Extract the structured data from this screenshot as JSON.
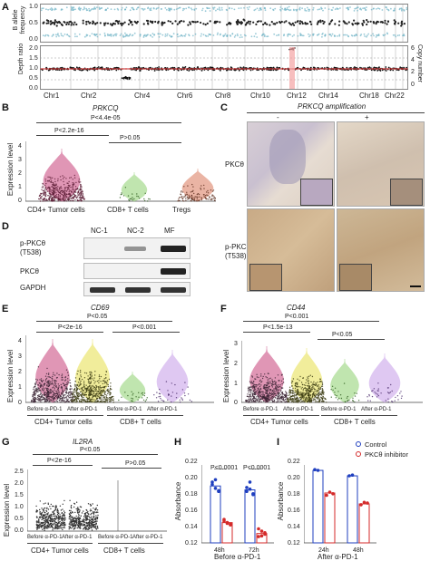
{
  "panels": {
    "a": "A",
    "b": "B",
    "c": "C",
    "d": "D",
    "e": "E",
    "f": "F",
    "g": "G",
    "h": "H",
    "i": "I"
  },
  "panel_a": {
    "y_label_top": "B allele\nfrequency",
    "y_label_bottom": "Depth ratio",
    "y_label_right": "Copy number",
    "top_ticks": [
      "1.0",
      "0.5",
      "0.0"
    ],
    "bottom_ticks": [
      "2.0",
      "1.5",
      "1.0",
      "0.5",
      "0.0"
    ],
    "right_ticks": [
      "6",
      "4",
      "2",
      "0"
    ],
    "chromosomes": [
      "Chr1",
      "Chr2",
      "Chr4",
      "Chr6",
      "Chr8",
      "Chr10",
      "Chr12",
      "Chr14",
      "Chr18",
      "Chr22"
    ]
  },
  "panel_b": {
    "title": "PRKCQ",
    "ylabel": "Expression level",
    "yticks": [
      "4",
      "3",
      "2",
      "1",
      "0"
    ],
    "groups": [
      "CD4+ Tumor cells",
      "CD8+ T cells",
      "Tregs"
    ],
    "group_colors": [
      "#c8417a",
      "#8ed06e",
      "#d9785a"
    ],
    "p_values": [
      "P<4.4e-05",
      "P<2.2e-16",
      "P>0.05"
    ]
  },
  "panel_c": {
    "title": "PRKCQ amplification",
    "col_labels": [
      "-",
      "+"
    ],
    "row_labels": [
      "PKCθ",
      "p-PKCθ\n(T538)"
    ]
  },
  "panel_d": {
    "col_labels": [
      "NC-1",
      "NC-2",
      "MF"
    ],
    "row_labels": [
      "p-PKCθ\n(T538)",
      "PKCθ",
      "GAPDH"
    ]
  },
  "panel_e": {
    "title": "CD69",
    "ylabel": "Expression level",
    "yticks": [
      "4",
      "3",
      "2",
      "1",
      "0"
    ],
    "subgroups": [
      "Before α-PD-1",
      "After α-PD-1",
      "Before α-PD-1",
      "After α-PD-1"
    ],
    "groups": [
      "CD4+ Tumor cells",
      "CD8+ T cells"
    ],
    "p_values": [
      "P<0.05",
      "P<2e-16",
      "P<0.001"
    ]
  },
  "panel_f": {
    "title": "CD44",
    "ylabel": "Expression level",
    "yticks": [
      "3",
      "2",
      "1",
      "0"
    ],
    "subgroups": [
      "Before α-PD-1",
      "After α-PD-1",
      "Before α-PD-1",
      "After α-PD-1"
    ],
    "groups": [
      "CD4+ Tumor cells",
      "CD8+ T cells"
    ],
    "p_values": [
      "P<0.001",
      "P<1.5e-13",
      "P<0.05"
    ]
  },
  "panel_g": {
    "title": "IL2RA",
    "ylabel": "Expression level",
    "yticks": [
      "2.5",
      "2.0",
      "1.5",
      "1.0",
      "0.5",
      "0.0"
    ],
    "subgroups": [
      "Before α-PD-1",
      "After α-PD-1",
      "Before α-PD-1",
      "After α-PD-1"
    ],
    "groups": [
      "CD4+ Tumor cells",
      "CD8+ T cells"
    ],
    "p_values": [
      "P<0.05",
      "P<2e-16",
      "P>0.05"
    ]
  },
  "panel_h": {
    "ylabel": "Absorbance",
    "yticks": [
      "0.22",
      "0.20",
      "0.18",
      "0.16",
      "0.14",
      "0.12"
    ],
    "xticks": [
      "48h",
      "72h"
    ],
    "xlabel": "Before α-PD-1",
    "p_values": [
      "P<0.0001",
      "P<0.0001"
    ]
  },
  "panel_i": {
    "ylabel": "Absorbance",
    "yticks": [
      "0.22",
      "0.20",
      "0.18",
      "0.16",
      "0.14",
      "0.12"
    ],
    "xticks": [
      "24h",
      "48h"
    ],
    "xlabel": "After α-PD-1",
    "legend": [
      "Control",
      "PKCθ inhibitor"
    ],
    "colors": {
      "control": "#1f3fbf",
      "inhibitor": "#d42a2a"
    }
  },
  "chart_data": [
    {
      "panel": "H",
      "type": "bar",
      "categories": [
        "48h",
        "72h"
      ],
      "series": [
        {
          "name": "Control",
          "values": [
            0.193,
            0.188
          ],
          "points": [
            [
              0.198,
              0.201,
              0.186,
              0.195,
              0.19,
              0.187
            ],
            [
              0.191,
              0.198,
              0.183,
              0.186,
              0.189,
              0.182
            ]
          ]
        },
        {
          "name": "PKCθ inhibitor",
          "values": [
            0.146,
            0.132
          ],
          "points": [
            [
              0.15,
              0.146,
              0.143,
              0.148,
              0.145,
              0.144
            ],
            [
              0.128,
              0.135,
              0.131,
              0.138,
              0.129,
              0.133
            ]
          ]
        }
      ],
      "ylabel": "Absorbance",
      "xlabel": "Before α-PD-1",
      "ylim": [
        0.12,
        0.22
      ]
    },
    {
      "panel": "I",
      "type": "bar",
      "categories": [
        "24h",
        "48h"
      ],
      "series": [
        {
          "name": "Control",
          "values": [
            0.213,
            0.206
          ],
          "points": [
            [
              0.214,
              0.213
            ],
            [
              0.206,
              0.207
            ]
          ]
        },
        {
          "name": "PKCθ inhibitor",
          "values": [
            0.184,
            0.17
          ],
          "points": [
            [
              0.181,
              0.185,
              0.183
            ],
            [
              0.169,
              0.172,
              0.171
            ]
          ]
        }
      ],
      "ylabel": "Absorbance",
      "xlabel": "After α-PD-1",
      "ylim": [
        0.12,
        0.22
      ]
    }
  ]
}
